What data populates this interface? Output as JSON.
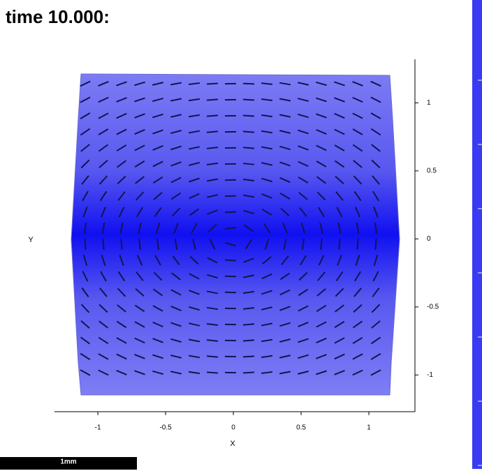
{
  "chart_data": {
    "type": "field",
    "title": "time 10.000:",
    "xlabel": "X",
    "ylabel": "Y",
    "xlim": [
      -1.32,
      1.34
    ],
    "ylim": [
      -1.27,
      1.32
    ],
    "xticks": [
      -1,
      -0.5,
      0,
      0.5,
      1
    ],
    "yticks": [
      -1,
      -0.5,
      0,
      0.5,
      1
    ],
    "scale_bar": "1mm"
  }
}
